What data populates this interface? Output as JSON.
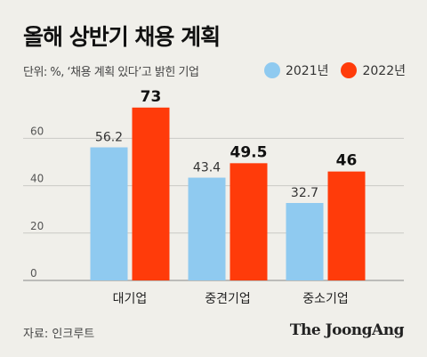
{
  "header": {
    "title": "올해 상반기 채용 계획",
    "unit_note": "단위: %, ‘채용 계획 있다’고 밝힌 기업"
  },
  "colors": {
    "series_2021": "#8fcaf0",
    "series_2022": "#ff3b0a",
    "gridline": "#c9c9c5",
    "background": "#f0efea"
  },
  "chart_data": {
    "type": "bar",
    "categories": [
      "대기업",
      "중견기업",
      "중소기업"
    ],
    "series": [
      {
        "name": "2021년",
        "values": [
          56.2,
          43.4,
          32.7
        ]
      },
      {
        "name": "2022년",
        "values": [
          73,
          49.5,
          46
        ]
      }
    ],
    "data_labels": {
      "2021년": [
        "56.2",
        "43.4",
        "32.7"
      ],
      "2022년": [
        "73",
        "49.5",
        "46"
      ]
    },
    "ylim": [
      0,
      80
    ],
    "yticks": [
      0,
      20,
      40,
      60
    ],
    "grid": true,
    "legend_position": "top-right",
    "title": "올해 상반기 채용 계획",
    "xlabel": "",
    "ylabel": ""
  },
  "footer": {
    "source": "자료: 인크루트",
    "brand": "The JoongAng"
  }
}
